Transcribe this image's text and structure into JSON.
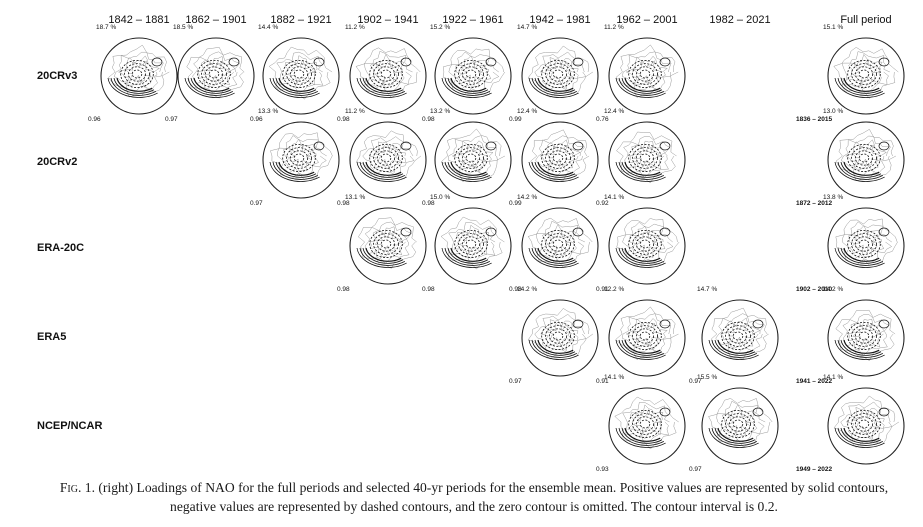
{
  "periods": [
    "1842 – 1881",
    "1862 – 1901",
    "1882 – 1921",
    "1902 – 1941",
    "1922 – 1961",
    "1942 – 1981",
    "1962 – 2001",
    "1982 – 2021",
    "Full period"
  ],
  "datasets": [
    {
      "name": "20CRv3",
      "panels": [
        {
          "period": 0,
          "variance": "18.7 %",
          "correlation": "0.96"
        },
        {
          "period": 1,
          "variance": "18.5 %",
          "correlation": "0.97"
        },
        {
          "period": 2,
          "variance": "14.4 %",
          "correlation": "0.96"
        },
        {
          "period": 3,
          "variance": "11.2 %",
          "correlation": "0.98"
        },
        {
          "period": 4,
          "variance": "15.2 %",
          "correlation": "0.98"
        },
        {
          "period": 5,
          "variance": "14.7 %",
          "correlation": "0.99"
        },
        {
          "period": 6,
          "variance": "11.2 %",
          "correlation": "0.76"
        }
      ],
      "full": {
        "variance": "15.1 %",
        "range": "1836 – 2015"
      }
    },
    {
      "name": "20CRv2",
      "panels": [
        {
          "period": 2,
          "variance": "13.3 %",
          "correlation": "0.97"
        },
        {
          "period": 3,
          "variance": "11.2 %",
          "correlation": "0.98"
        },
        {
          "period": 4,
          "variance": "13.2 %",
          "correlation": "0.98"
        },
        {
          "period": 5,
          "variance": "12.4 %",
          "correlation": "0.99"
        },
        {
          "period": 6,
          "variance": "12.4 %",
          "correlation": "0.92"
        }
      ],
      "full": {
        "variance": "13.0 %",
        "range": "1872 – 2012"
      }
    },
    {
      "name": "ERA-20C",
      "panels": [
        {
          "period": 3,
          "variance": "13.1 %",
          "correlation": "0.98"
        },
        {
          "period": 4,
          "variance": "15.0 %",
          "correlation": "0.98"
        },
        {
          "period": 5,
          "variance": "14.2 %",
          "correlation": "0.98"
        },
        {
          "period": 6,
          "variance": "14.1 %",
          "correlation": "0.91"
        }
      ],
      "full": {
        "variance": "13.8 %",
        "range": "1902 – 2010"
      }
    },
    {
      "name": "ERA5",
      "panels": [
        {
          "period": 5,
          "variance": "14.2 %",
          "correlation": "0.97"
        },
        {
          "period": 6,
          "variance": "12.2 %",
          "correlation": "0.91"
        },
        {
          "period": 7,
          "variance": "14.7 %",
          "correlation": "0.97"
        }
      ],
      "full": {
        "variance": "14.2 %",
        "range": "1941 – 2022"
      }
    },
    {
      "name": "NCEP/NCAR",
      "panels": [
        {
          "period": 6,
          "variance": "14.1 %",
          "correlation": "0.93"
        },
        {
          "period": 7,
          "variance": "15.5 %",
          "correlation": "0.97"
        }
      ],
      "full": {
        "variance": "14.1 %",
        "range": "1949 – 2022"
      }
    }
  ],
  "caption": {
    "label": "Fig. 1.",
    "text": " (right) Loadings of NAO for the full periods and selected 40-yr periods for the ensemble mean. Positive values are represented by solid contours, negative values are represented by dashed contours, and the zero contour is omitted. The contour interval is 0.2."
  }
}
